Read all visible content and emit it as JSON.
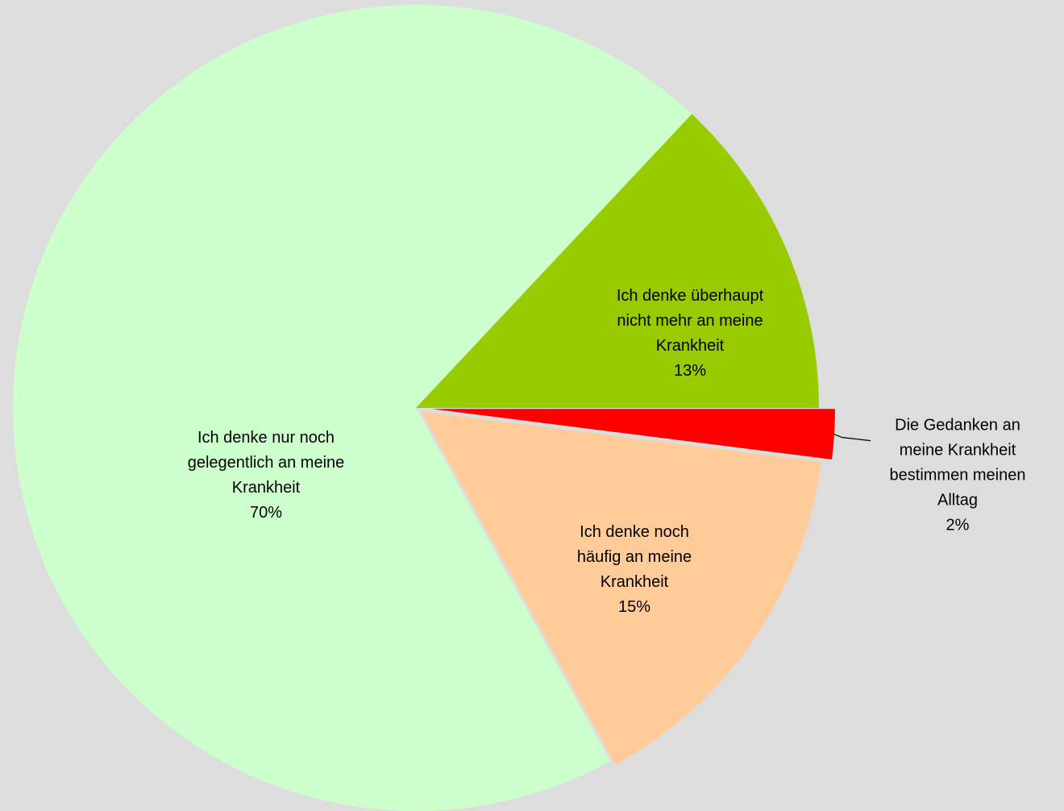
{
  "chart_data": {
    "type": "pie",
    "categories": [
      "Die Gedanken an meine Krankheit bestimmen meinen Alltag",
      "Ich denke noch häufig an meine Krankheit",
      "Ich denke nur noch gelegentlich an meine Krankheit",
      "Ich denke überhaupt nicht mehr an meine Krankheit"
    ],
    "values": [
      2,
      15,
      70,
      13
    ],
    "value_labels": [
      "2%",
      "15%",
      "70%",
      "13%"
    ],
    "colors": [
      "#ff0000",
      "#ffcc99",
      "#ccffcc",
      "#99cc00"
    ]
  }
}
